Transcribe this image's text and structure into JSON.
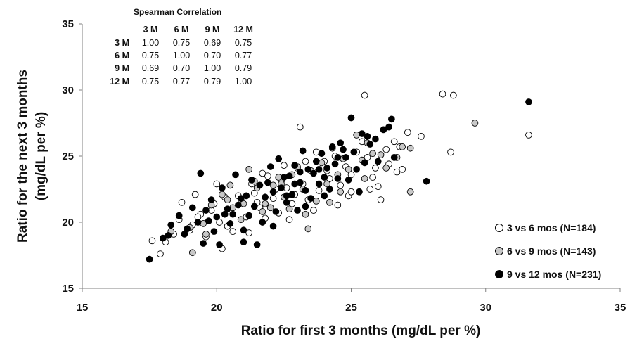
{
  "colors": {
    "open": "#ffffff",
    "grey": "#c8c8c8",
    "filled": "#000000",
    "axis": "#808080"
  },
  "table": {
    "title": "Spearman Correlation",
    "columns": [
      "3 M",
      "6 M",
      "9 M",
      "12 M"
    ],
    "rows": [
      {
        "label": "3 M",
        "values": [
          "1.00",
          "0.75",
          "0.69",
          "0.75"
        ]
      },
      {
        "label": "6 M",
        "values": [
          "0.75",
          "1.00",
          "0.70",
          "0.77"
        ]
      },
      {
        "label": "9 M",
        "values": [
          "0.69",
          "0.70",
          "1.00",
          "0.79"
        ]
      },
      {
        "label": "12 M",
        "values": [
          "0.75",
          "0.77",
          "0.79",
          "1.00"
        ]
      }
    ]
  },
  "legend": [
    {
      "label": "3 vs 6 mos (N=184)",
      "color": "#ffffff"
    },
    {
      "label": "6 vs 9 mos (N=143)",
      "color": "#c8c8c8"
    },
    {
      "label": "9 vs 12 mos (N=231)",
      "color": "#000000"
    }
  ],
  "chart_data": {
    "type": "scatter",
    "xlabel": "Ratio for first 3 months (mg/dL per %)",
    "ylabel": "Ratio for the next 3 months (mg/dL per %)",
    "ylabel_lines": [
      "Ratio for the next 3 months",
      "(mg/dL per %)"
    ],
    "xlim": [
      15,
      35
    ],
    "ylim": [
      15,
      35
    ],
    "xticks": [
      "15",
      "20",
      "25",
      "30",
      "35"
    ],
    "yticks": [
      "15",
      "20",
      "25",
      "30",
      "35"
    ],
    "grid": false,
    "legend_position": "bottom-right",
    "series": [
      {
        "name": "3 vs 6 mos (N=184)",
        "points": [
          [
            18.7,
            21.5
          ],
          [
            18.6,
            20.2
          ],
          [
            19.2,
            22.1
          ],
          [
            19.1,
            19.8
          ],
          [
            19.4,
            20.6
          ],
          [
            19.8,
            20.9
          ],
          [
            20.0,
            22.9
          ],
          [
            20.3,
            21.9
          ],
          [
            20.6,
            19.3
          ],
          [
            20.9,
            21.7
          ],
          [
            21.1,
            20.4
          ],
          [
            21.4,
            22.2
          ],
          [
            21.6,
            21.1
          ],
          [
            21.9,
            23.5
          ],
          [
            22.1,
            21.8
          ],
          [
            22.3,
            20.7
          ],
          [
            22.4,
            23.1
          ],
          [
            22.6,
            22.6
          ],
          [
            22.8,
            21.4
          ],
          [
            23.0,
            24.1
          ],
          [
            23.2,
            22.9
          ],
          [
            23.4,
            21.7
          ],
          [
            23.6,
            23.8
          ],
          [
            23.8,
            22.4
          ],
          [
            24.0,
            24.6
          ],
          [
            24.2,
            23.3
          ],
          [
            24.4,
            25.0
          ],
          [
            24.6,
            22.8
          ],
          [
            24.8,
            24.2
          ],
          [
            25.0,
            23.6
          ],
          [
            25.2,
            25.3
          ],
          [
            25.4,
            26.1
          ],
          [
            25.6,
            24.9
          ],
          [
            25.8,
            23.4
          ],
          [
            26.0,
            22.7
          ],
          [
            26.3,
            25.5
          ],
          [
            26.4,
            24.4
          ],
          [
            26.6,
            26.1
          ],
          [
            26.8,
            25.7
          ],
          [
            27.1,
            26.8
          ],
          [
            27.6,
            26.5
          ],
          [
            28.4,
            29.7
          ],
          [
            28.8,
            29.6
          ],
          [
            28.7,
            25.3
          ],
          [
            31.6,
            26.6
          ],
          [
            25.5,
            29.6
          ],
          [
            23.1,
            27.2
          ],
          [
            26.7,
            23.8
          ],
          [
            24.9,
            22.0
          ],
          [
            21.7,
            23.7
          ],
          [
            20.2,
            18.0
          ],
          [
            19.6,
            18.9
          ],
          [
            18.4,
            19.1
          ],
          [
            17.9,
            17.6
          ],
          [
            18.1,
            18.5
          ],
          [
            17.6,
            18.6
          ],
          [
            19.0,
            19.4
          ],
          [
            20.4,
            19.7
          ],
          [
            21.2,
            19.2
          ],
          [
            21.8,
            20.3
          ],
          [
            22.7,
            20.2
          ],
          [
            23.6,
            20.9
          ],
          [
            24.5,
            21.3
          ],
          [
            25.0,
            22.3
          ],
          [
            25.7,
            22.5
          ],
          [
            26.1,
            21.7
          ],
          [
            23.3,
            24.6
          ],
          [
            22.5,
            24.3
          ],
          [
            21.3,
            22.9
          ],
          [
            20.8,
            22.0
          ],
          [
            19.9,
            21.4
          ],
          [
            19.3,
            20.4
          ],
          [
            22.9,
            22.1
          ],
          [
            24.1,
            23.9
          ],
          [
            23.7,
            25.3
          ],
          [
            25.9,
            24.1
          ],
          [
            26.9,
            24.0
          ],
          [
            20.1,
            20.0
          ],
          [
            21.5,
            21.5
          ],
          [
            22.2,
            22.5
          ]
        ]
      },
      {
        "name": "6 vs 9 mos (N=143)",
        "points": [
          [
            19.1,
            17.7
          ],
          [
            19.5,
            19.9
          ],
          [
            19.8,
            21.3
          ],
          [
            20.2,
            22.1
          ],
          [
            20.6,
            21.1
          ],
          [
            20.9,
            20.2
          ],
          [
            21.2,
            24.0
          ],
          [
            21.5,
            22.6
          ],
          [
            21.8,
            21.4
          ],
          [
            22.1,
            22.8
          ],
          [
            22.3,
            23.4
          ],
          [
            22.5,
            21.9
          ],
          [
            22.8,
            23.6
          ],
          [
            23.0,
            24.2
          ],
          [
            23.2,
            22.5
          ],
          [
            23.4,
            19.5
          ],
          [
            23.5,
            23.9
          ],
          [
            23.7,
            21.6
          ],
          [
            23.9,
            24.5
          ],
          [
            24.1,
            22.9
          ],
          [
            24.3,
            25.6
          ],
          [
            24.5,
            23.6
          ],
          [
            24.7,
            24.8
          ],
          [
            24.9,
            24.0
          ],
          [
            25.2,
            26.6
          ],
          [
            25.4,
            24.7
          ],
          [
            25.6,
            26.0
          ],
          [
            25.8,
            25.2
          ],
          [
            26.1,
            25.1
          ],
          [
            26.3,
            24.1
          ],
          [
            26.7,
            24.9
          ],
          [
            26.9,
            25.7
          ],
          [
            27.2,
            25.6
          ],
          [
            27.2,
            22.3
          ],
          [
            29.6,
            27.5
          ],
          [
            18.3,
            19.3
          ],
          [
            19.0,
            19.6
          ],
          [
            20.4,
            21.7
          ],
          [
            21.0,
            21.4
          ],
          [
            21.7,
            20.8
          ],
          [
            22.7,
            21.0
          ],
          [
            23.3,
            20.6
          ],
          [
            24.2,
            21.5
          ],
          [
            22.4,
            22.9
          ],
          [
            21.4,
            23.1
          ],
          [
            20.5,
            22.8
          ],
          [
            19.6,
            19.1
          ],
          [
            22.0,
            21.1
          ],
          [
            24.6,
            22.3
          ],
          [
            25.5,
            23.3
          ]
        ]
      },
      {
        "name": "9 vs 12 mos (N=231)",
        "points": [
          [
            17.5,
            17.2
          ],
          [
            18.0,
            18.8
          ],
          [
            18.3,
            19.8
          ],
          [
            18.6,
            20.5
          ],
          [
            18.8,
            19.1
          ],
          [
            19.1,
            21.1
          ],
          [
            19.3,
            20.0
          ],
          [
            19.5,
            18.4
          ],
          [
            19.6,
            20.9
          ],
          [
            19.8,
            21.7
          ],
          [
            19.9,
            19.3
          ],
          [
            20.0,
            20.4
          ],
          [
            20.1,
            18.3
          ],
          [
            20.2,
            22.6
          ],
          [
            20.4,
            21.0
          ],
          [
            20.5,
            19.9
          ],
          [
            20.7,
            23.6
          ],
          [
            20.8,
            21.3
          ],
          [
            21.0,
            18.5
          ],
          [
            21.1,
            22.0
          ],
          [
            21.2,
            20.5
          ],
          [
            21.3,
            23.2
          ],
          [
            21.5,
            18.3
          ],
          [
            21.6,
            22.8
          ],
          [
            21.7,
            20.0
          ],
          [
            21.8,
            21.9
          ],
          [
            22.0,
            24.2
          ],
          [
            22.1,
            22.3
          ],
          [
            22.2,
            20.8
          ],
          [
            22.3,
            24.8
          ],
          [
            22.4,
            22.6
          ],
          [
            22.6,
            21.5
          ],
          [
            22.7,
            23.5
          ],
          [
            22.8,
            22.1
          ],
          [
            22.9,
            24.3
          ],
          [
            23.0,
            20.9
          ],
          [
            23.1,
            23.0
          ],
          [
            23.2,
            25.4
          ],
          [
            23.3,
            22.4
          ],
          [
            23.4,
            24.0
          ],
          [
            23.5,
            21.8
          ],
          [
            23.6,
            23.7
          ],
          [
            23.7,
            24.6
          ],
          [
            23.8,
            22.9
          ],
          [
            23.9,
            25.2
          ],
          [
            24.0,
            23.4
          ],
          [
            24.1,
            24.1
          ],
          [
            24.2,
            22.5
          ],
          [
            24.3,
            25.7
          ],
          [
            24.4,
            24.4
          ],
          [
            24.5,
            23.3
          ],
          [
            24.6,
            26.0
          ],
          [
            24.8,
            24.9
          ],
          [
            24.9,
            23.2
          ],
          [
            25.0,
            27.9
          ],
          [
            25.1,
            25.3
          ],
          [
            25.2,
            24.0
          ],
          [
            25.3,
            22.3
          ],
          [
            25.4,
            26.7
          ],
          [
            25.5,
            24.5
          ],
          [
            25.7,
            25.9
          ],
          [
            25.9,
            26.3
          ],
          [
            26.0,
            24.6
          ],
          [
            26.2,
            27.0
          ],
          [
            26.4,
            27.2
          ],
          [
            26.5,
            27.8
          ],
          [
            26.6,
            24.9
          ],
          [
            27.8,
            23.1
          ],
          [
            31.6,
            29.1
          ],
          [
            19.4,
            23.7
          ],
          [
            20.6,
            20.6
          ],
          [
            21.4,
            21.2
          ],
          [
            22.5,
            23.4
          ],
          [
            23.3,
            21.2
          ],
          [
            24.0,
            22.0
          ],
          [
            24.7,
            25.5
          ],
          [
            22.1,
            19.7
          ],
          [
            21.0,
            19.4
          ],
          [
            20.3,
            20.6
          ],
          [
            19.7,
            20.1
          ],
          [
            18.9,
            19.5
          ],
          [
            18.2,
            19.0
          ],
          [
            22.6,
            22.0
          ],
          [
            23.1,
            23.8
          ],
          [
            23.8,
            24.0
          ],
          [
            21.9,
            23.0
          ],
          [
            20.9,
            21.8
          ],
          [
            22.9,
            22.9
          ],
          [
            24.5,
            24.9
          ],
          [
            25.6,
            26.5
          ]
        ]
      }
    ]
  }
}
